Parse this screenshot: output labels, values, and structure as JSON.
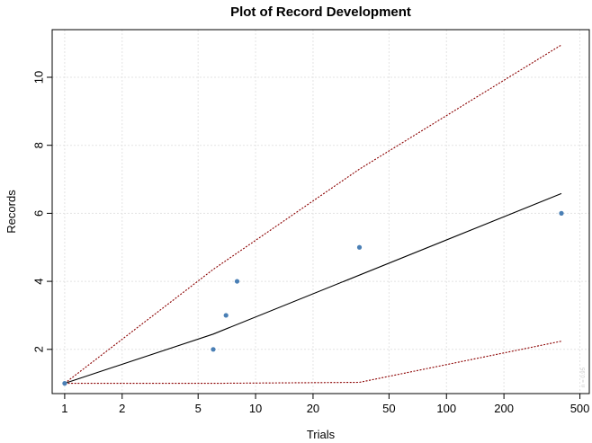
{
  "chart_data": {
    "type": "line",
    "title": "Plot of Record Development",
    "xlabel": "Trials",
    "ylabel": "Records",
    "x_scale": "log",
    "xlim": [
      0.86,
      560
    ],
    "ylim": [
      0.7,
      11.4
    ],
    "x_ticks": [
      1,
      2,
      5,
      10,
      20,
      50,
      100,
      200,
      500
    ],
    "y_ticks": [
      2,
      4,
      6,
      8,
      10
    ],
    "grid": true,
    "points": {
      "color": "#4a7fb5",
      "x": [
        1,
        6,
        7,
        8,
        35,
        400
      ],
      "y": [
        1,
        2,
        3,
        4,
        5,
        6
      ]
    },
    "series": [
      {
        "style": "solid",
        "color": "#000000",
        "x": [
          1,
          6,
          400
        ],
        "y": [
          1,
          2.45,
          6.58
        ]
      },
      {
        "style": "dotted",
        "color": "#8b0000",
        "x": [
          1,
          6,
          35,
          400
        ],
        "y": [
          1,
          4.35,
          7.3,
          10.95
        ]
      },
      {
        "style": "dotted",
        "color": "#8b0000",
        "x": [
          1,
          6,
          35,
          400
        ],
        "y": [
          1,
          1,
          1.03,
          2.24
        ]
      }
    ],
    "watermark": "n = 0.95"
  }
}
